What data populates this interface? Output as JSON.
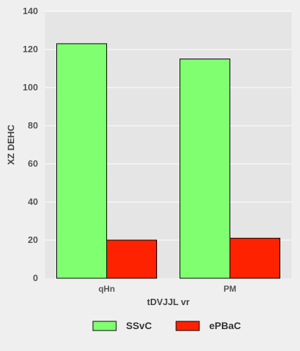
{
  "chart_data": {
    "type": "bar",
    "categories": [
      "qHn",
      "PM"
    ],
    "series": [
      {
        "name": "SSvC",
        "values": [
          123,
          115
        ],
        "color": "#80ff70"
      },
      {
        "name": "ePBaC",
        "values": [
          20,
          21
        ],
        "color": "#ff2200"
      }
    ],
    "xlabel": "tDVJJL vr",
    "ylabel": "XZ DEHC",
    "ylim": [
      0,
      140
    ],
    "yticks": [
      "0",
      "20",
      "40",
      "60",
      "80",
      "100",
      "120",
      "140"
    ],
    "grid": true,
    "legend_position": "bottom",
    "plot_background": "#e5e5e5",
    "grid_color": "#ffffff"
  }
}
